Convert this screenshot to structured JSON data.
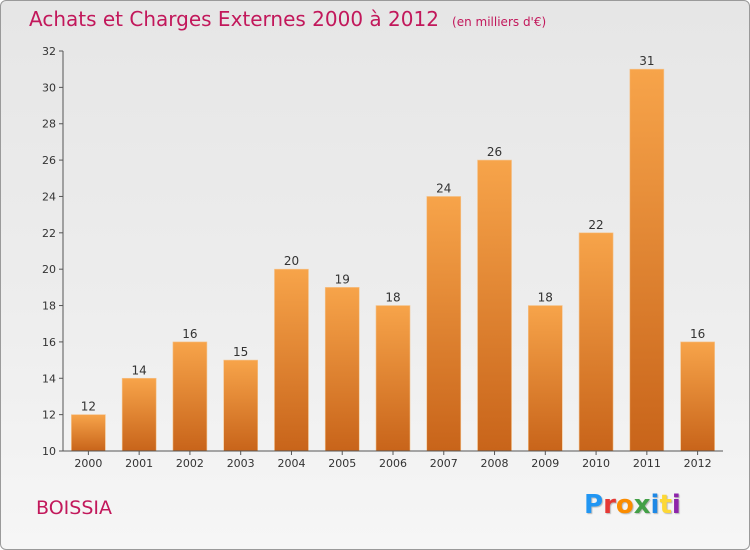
{
  "chart_data": {
    "type": "bar",
    "title": "Achats et Charges Externes 2000 à 2012",
    "subtitle": "(en milliers d'€)",
    "categories": [
      "2000",
      "2001",
      "2002",
      "2003",
      "2004",
      "2005",
      "2006",
      "2007",
      "2008",
      "2009",
      "2010",
      "2011",
      "2012"
    ],
    "values": [
      12,
      14,
      16,
      15,
      20,
      19,
      18,
      24,
      26,
      18,
      22,
      31,
      16
    ],
    "data_labels": [
      "12",
      "14",
      "16",
      "15",
      "20",
      "19",
      "18",
      "24",
      "26",
      "18",
      "22",
      "31",
      "16"
    ],
    "ylim": [
      10,
      32
    ],
    "yticks": [
      10,
      12,
      14,
      16,
      18,
      20,
      22,
      24,
      26,
      28,
      30,
      32
    ],
    "ytick_labels": [
      "10",
      "12",
      "14",
      "16",
      "18",
      "20",
      "22",
      "24",
      "26",
      "28",
      "30",
      "32"
    ],
    "grid": false,
    "bar_color_top": "#f7a44a",
    "bar_color_bottom": "#c8641a"
  },
  "footer": {
    "city": "BOISSIA",
    "logo_letters": [
      "P",
      "r",
      "o",
      "x",
      "i",
      "t",
      "i"
    ],
    "logo_colors": [
      "#2196f3",
      "#e53935",
      "#fb8c00",
      "#43a047",
      "#1e88e5",
      "#fdd835",
      "#8e24aa"
    ]
  }
}
